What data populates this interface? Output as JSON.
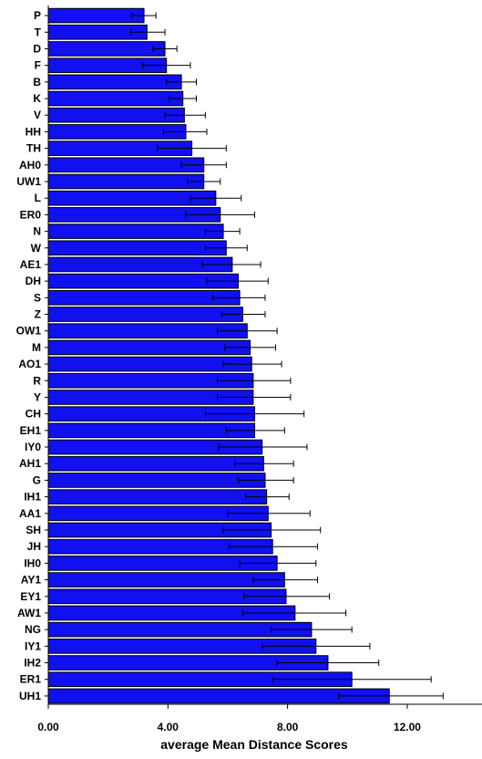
{
  "chart_data": {
    "type": "bar",
    "orientation": "horizontal",
    "title": "",
    "xlabel": "average Mean Distance Scores",
    "ylabel": "",
    "xlim": [
      0,
      14.5
    ],
    "x_ticks": [
      "0.00",
      "4.00",
      "8.00",
      "12.00"
    ],
    "x_tick_values": [
      0,
      4,
      8,
      12
    ],
    "grid": false,
    "error_bars": true,
    "bar_color": "#1010f0",
    "bar_edge_color": "#000000",
    "categories": [
      "P",
      "T",
      "D",
      "F",
      "B",
      "K",
      "V",
      "HH",
      "TH",
      "AH0",
      "UW1",
      "L",
      "ER0",
      "N",
      "W",
      "AE1",
      "DH",
      "S",
      "Z",
      "OW1",
      "M",
      "AO1",
      "R",
      "Y",
      "CH",
      "EH1",
      "IY0",
      "AH1",
      "G",
      "IH1",
      "AA1",
      "SH",
      "JH",
      "IH0",
      "AY1",
      "EY1",
      "AW1",
      "NG",
      "IY1",
      "IH2",
      "ER1",
      "UH1"
    ],
    "values": [
      3.2,
      3.3,
      3.9,
      3.95,
      4.45,
      4.5,
      4.55,
      4.6,
      4.8,
      5.2,
      5.2,
      5.6,
      5.75,
      5.85,
      5.95,
      6.15,
      6.35,
      6.4,
      6.5,
      6.65,
      6.75,
      6.8,
      6.85,
      6.85,
      6.9,
      6.9,
      7.15,
      7.2,
      7.25,
      7.3,
      7.35,
      7.45,
      7.5,
      7.65,
      7.9,
      7.95,
      8.25,
      8.8,
      8.95,
      9.35,
      10.15,
      11.4
    ],
    "error_low": [
      2.8,
      2.75,
      3.5,
      3.15,
      3.95,
      4.05,
      3.9,
      3.85,
      3.65,
      4.45,
      4.65,
      4.75,
      4.6,
      5.25,
      5.25,
      5.15,
      5.3,
      5.5,
      5.8,
      5.65,
      5.9,
      5.85,
      5.65,
      5.65,
      5.25,
      5.95,
      5.7,
      6.25,
      6.35,
      6.6,
      6.0,
      5.85,
      6.05,
      6.4,
      6.85,
      6.55,
      6.5,
      7.45,
      7.15,
      7.65,
      7.5,
      9.7
    ],
    "error_high": [
      3.6,
      3.9,
      4.3,
      4.75,
      4.95,
      4.95,
      5.25,
      5.3,
      5.95,
      5.95,
      5.75,
      6.45,
      6.9,
      6.4,
      6.65,
      7.1,
      7.35,
      7.25,
      7.25,
      7.65,
      7.6,
      7.8,
      8.1,
      8.1,
      8.55,
      7.9,
      8.65,
      8.2,
      8.2,
      8.05,
      8.75,
      9.1,
      9.0,
      8.95,
      9.0,
      9.4,
      9.95,
      10.15,
      10.75,
      11.05,
      12.8,
      13.2
    ]
  }
}
